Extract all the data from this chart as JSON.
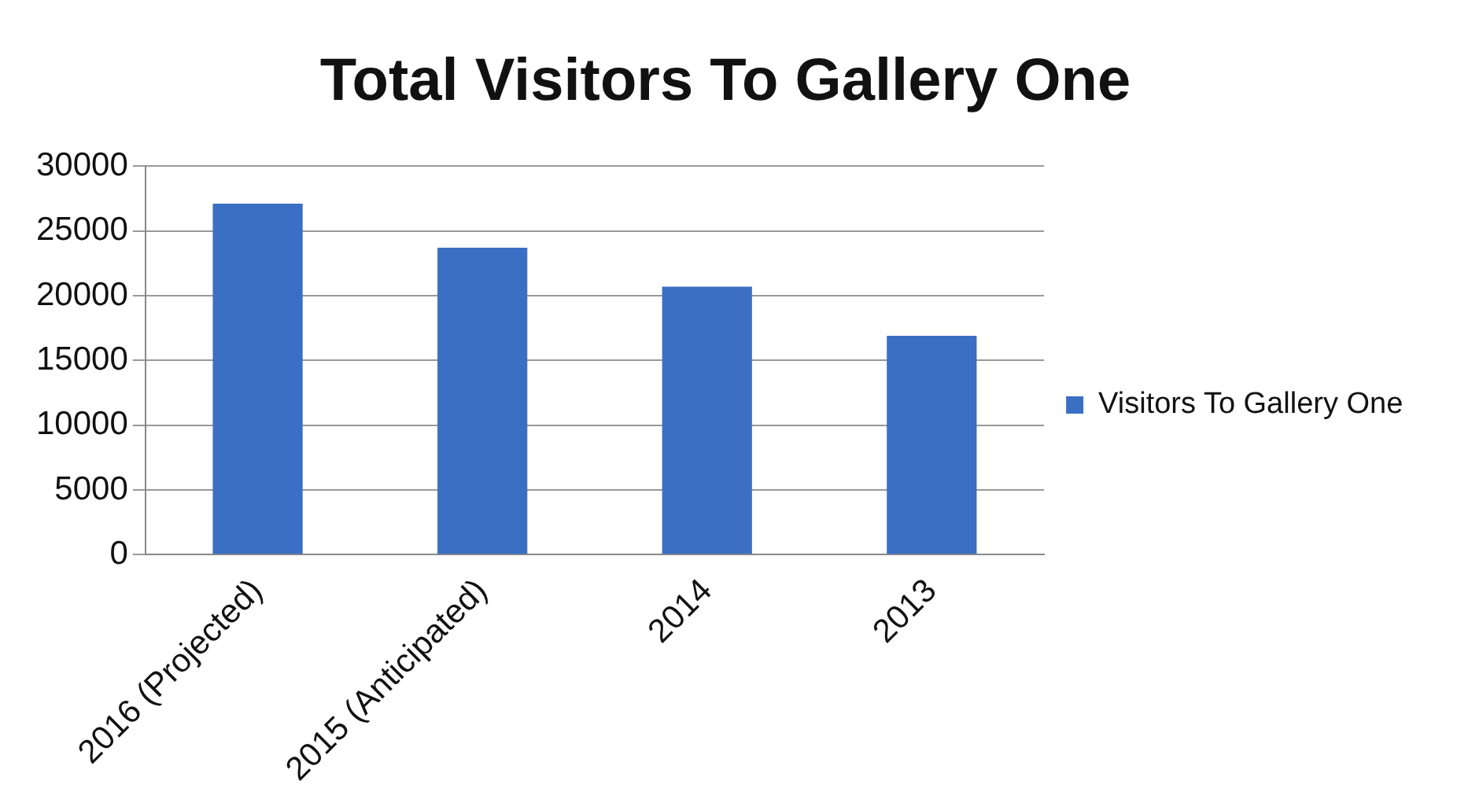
{
  "chart_data": {
    "type": "bar",
    "title": "Total Visitors To Gallery One",
    "categories": [
      "2016 (Projected)",
      "2015 (Anticipated)",
      "2014",
      "2013"
    ],
    "series": [
      {
        "name": "Visitors To Gallery One",
        "color": "#3a6fc4",
        "values": [
          27100,
          23700,
          20700,
          16900
        ]
      }
    ],
    "ylim": [
      0,
      30000
    ],
    "yticks": [
      0,
      5000,
      10000,
      15000,
      20000,
      25000,
      30000
    ],
    "grid": "y",
    "legend": "right"
  }
}
